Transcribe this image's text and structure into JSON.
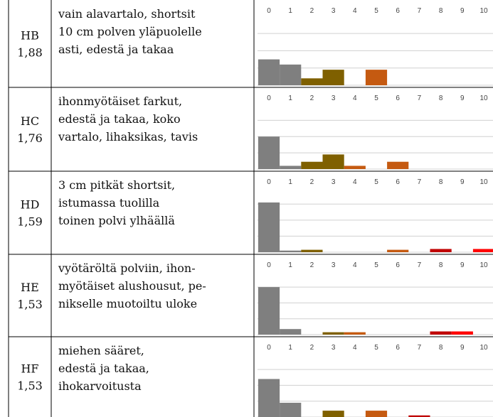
{
  "histogram_axis": {
    "categories": [
      0,
      1,
      2,
      3,
      4,
      5,
      6,
      7,
      8,
      9,
      10
    ],
    "bin_colors": [
      "#7f7f7f",
      "#7f7f7f",
      "#7f6000",
      "#7f6000",
      "#c55a11",
      "#c55a11",
      "#c55a11",
      "#c00000",
      "#c00000",
      "#ff0000",
      "#ff0000"
    ],
    "ylim": [
      0,
      3.5
    ],
    "yticks": [
      0,
      1,
      2,
      3
    ],
    "grid": true
  },
  "table": {
    "rows": [
      {
        "code": "HB",
        "score": "1,88",
        "description": [
          "vain alavartalo, shortsit",
          "10 cm polven yläpuolelle",
          "asti, edestä ja takaa"
        ],
        "values": [
          1.5,
          1.2,
          0.4,
          0.9,
          0,
          0.9,
          0,
          0,
          0,
          0,
          0
        ]
      },
      {
        "code": "HC",
        "score": "1,76",
        "description": [
          "ihonmyötäiset farkut,",
          "edestä ja takaa, koko",
          "vartalo, lihaksikas, tavis"
        ],
        "values": [
          2,
          0.2,
          0.45,
          0.9,
          0.2,
          0,
          0.45,
          0,
          0,
          0,
          0
        ]
      },
      {
        "code": "HD",
        "score": "1,59",
        "description": [
          "3 cm pitkät shortsit,",
          "istumassa tuolilla",
          "toinen polvi ylhäällä"
        ],
        "values": [
          3.1,
          0.1,
          0.15,
          0,
          0,
          0,
          0.15,
          0,
          0.2,
          0,
          0.2
        ]
      },
      {
        "code": "HE",
        "score": "1,53",
        "description": [
          "vyötäröltä polviin, ihon-",
          "myötäiset alushousut, pe-",
          "nikselle muotoiltu uloke"
        ],
        "values": [
          3.0,
          0.35,
          0,
          0.15,
          0.15,
          0,
          0,
          0,
          0.2,
          0.2,
          0
        ]
      },
      {
        "code": "HF",
        "score": "1,53",
        "description": [
          "miehen sääret,",
          "edestä ja takaa,",
          "ihokarvoitusta"
        ],
        "values": [
          2.4,
          0.9,
          0,
          0.4,
          0,
          0.4,
          0,
          0.1,
          0,
          0,
          0
        ]
      }
    ]
  }
}
